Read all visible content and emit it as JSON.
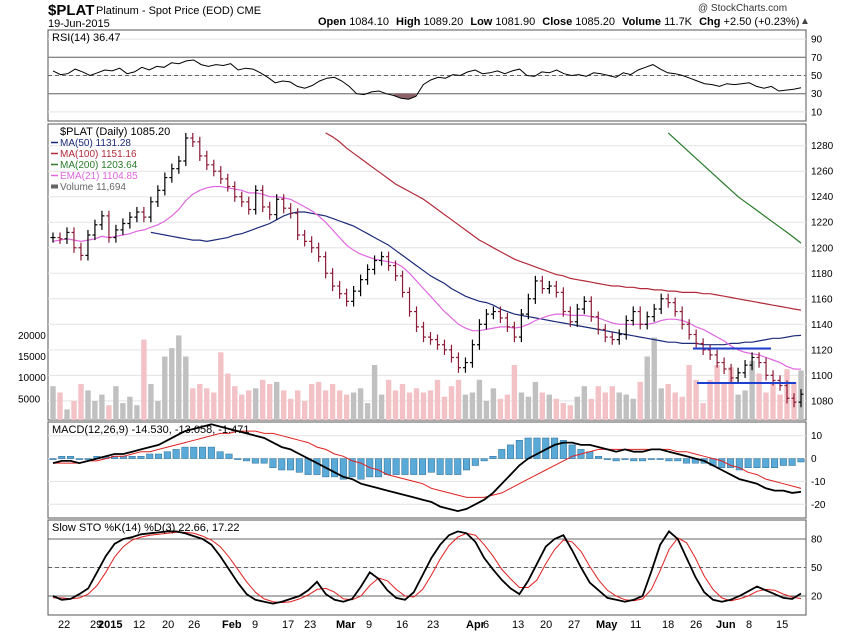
{
  "header": {
    "symbol": "$PLAT",
    "name": "Platinum",
    "subtitle": "- Spot Price (EOD)",
    "exchange": "CME",
    "date": "19-Jun-2015",
    "copyright": "@ StockCharts.com",
    "open_label": "Open",
    "open": "1084.10",
    "high_label": "High",
    "high": "1089.20",
    "low_label": "Low",
    "low": "1081.90",
    "close_label": "Close",
    "close": "1085.20",
    "volume_label": "Volume",
    "volume": "11.7K",
    "chg_label": "Chg",
    "chg": "+2.50 (+0.23%)",
    "arrow": "▲"
  },
  "colors": {
    "up_bar": "#000000",
    "down_bar": "#8b1a35",
    "ma50": "#1c2a7a",
    "ma100": "#b22a3a",
    "ma200": "#2a7a2a",
    "ema21": "#e066e0",
    "vol_up": "#c0c0c0",
    "vol_down": "#f2c2c6",
    "hist": "#5aaad8",
    "support": "#1f3fd0",
    "grid": "#e3e3e3",
    "rsi_fill": "#8a6468"
  },
  "chart_data": [
    {
      "type": "line",
      "title": "RSI(14) 36.47",
      "legend": [
        "RSI(14) 36.47"
      ],
      "ylim": [
        0,
        100
      ],
      "ticks": [
        "90",
        "70",
        "50",
        "30",
        "10"
      ],
      "tick_values": [
        90,
        70,
        50,
        30,
        10
      ],
      "reference_lines": [
        70,
        50,
        30
      ],
      "values": [
        55,
        51,
        52,
        57,
        54,
        50,
        53,
        56,
        55,
        58,
        52,
        54,
        59,
        56,
        60,
        59,
        64,
        63,
        66,
        67,
        62,
        60,
        62,
        61,
        63,
        56,
        58,
        57,
        53,
        48,
        42,
        44,
        43,
        38,
        36,
        39,
        44,
        47,
        48,
        44,
        38,
        30,
        29,
        32,
        33,
        30,
        28,
        25,
        24,
        27,
        40,
        45,
        48,
        47,
        51,
        50,
        54,
        56,
        52,
        53,
        55,
        52,
        55,
        57,
        50,
        49,
        54,
        53,
        56,
        52,
        50,
        51,
        49,
        53,
        52,
        50,
        48,
        53,
        51,
        56,
        59,
        62,
        57,
        53,
        52,
        50,
        47,
        44,
        41,
        40,
        38,
        41,
        40,
        41,
        42,
        38,
        36,
        38,
        33,
        34,
        35,
        36.47
      ]
    },
    {
      "type": "bar",
      "title": "$PLAT (Daily) 1085.20",
      "legend": [
        "$PLAT (Daily) 1085.20",
        "MA(50) 1131.28",
        "MA(100) 1151.16",
        "MA(200) 1203.64",
        "EMA(21) 1104.85",
        "Volume 11,694"
      ],
      "ylim": [
        1065,
        1297
      ],
      "ticks": [
        "1280",
        "1260",
        "1240",
        "1220",
        "1200",
        "1180",
        "1160",
        "1140",
        "1120",
        "1100",
        "1080"
      ],
      "tick_values": [
        1280,
        1260,
        1240,
        1220,
        1200,
        1180,
        1160,
        1140,
        1120,
        1100,
        1080
      ],
      "volume_ticks": [
        "20000",
        "15000",
        "10000",
        "5000"
      ],
      "volume_tick_values": [
        20000,
        15000,
        10000,
        5000
      ],
      "volume_max": 26000,
      "close": [
        1208,
        1207,
        1212,
        1200,
        1194,
        1210,
        1218,
        1225,
        1208,
        1214,
        1219,
        1224,
        1228,
        1224,
        1236,
        1245,
        1255,
        1262,
        1268,
        1286,
        1283,
        1272,
        1265,
        1260,
        1254,
        1248,
        1240,
        1236,
        1230,
        1245,
        1232,
        1226,
        1238,
        1231,
        1227,
        1210,
        1205,
        1200,
        1193,
        1180,
        1170,
        1164,
        1158,
        1166,
        1175,
        1183,
        1190,
        1193,
        1186,
        1178,
        1165,
        1150,
        1138,
        1130,
        1128,
        1124,
        1120,
        1114,
        1106,
        1110,
        1124,
        1140,
        1148,
        1150,
        1145,
        1138,
        1130,
        1148,
        1160,
        1174,
        1168,
        1170,
        1165,
        1150,
        1142,
        1152,
        1158,
        1146,
        1136,
        1130,
        1128,
        1132,
        1143,
        1150,
        1140,
        1146,
        1152,
        1160,
        1157,
        1150,
        1140,
        1132,
        1125,
        1120,
        1116,
        1110,
        1105,
        1098,
        1102,
        1108,
        1114,
        1110,
        1100,
        1096,
        1092,
        1082,
        1079,
        1085.2
      ],
      "ma50": [
        1212,
        1211,
        1210,
        1209,
        1208,
        1207,
        1206,
        1206,
        1205,
        1206,
        1207,
        1208,
        1210,
        1211,
        1213,
        1215,
        1217,
        1219,
        1222,
        1225,
        1227,
        1228,
        1228,
        1227,
        1226,
        1225,
        1223,
        1221,
        1219,
        1217,
        1214,
        1211,
        1208,
        1205,
        1202,
        1198,
        1194,
        1190,
        1186,
        1182,
        1178,
        1175,
        1172,
        1168,
        1165,
        1162,
        1160,
        1158,
        1157,
        1155,
        1152,
        1150,
        1148,
        1147,
        1146,
        1145,
        1144,
        1143,
        1142,
        1141,
        1140,
        1139,
        1138,
        1137,
        1136,
        1135,
        1134,
        1133,
        1132,
        1131,
        1130,
        1129,
        1128,
        1127,
        1126,
        1126,
        1125,
        1125,
        1125,
        1124,
        1124,
        1124,
        1124,
        1125,
        1125,
        1126,
        1126,
        1127,
        1128,
        1129,
        1129,
        1130,
        1131,
        1131.28
      ],
      "ma100": [
        1290,
        1287,
        1283,
        1278,
        1274,
        1270,
        1266,
        1262,
        1258,
        1254,
        1250,
        1247,
        1244,
        1241,
        1238,
        1234,
        1230,
        1226,
        1222,
        1218,
        1214,
        1210,
        1206,
        1203,
        1200,
        1197,
        1194,
        1191,
        1189,
        1187,
        1185,
        1183,
        1181,
        1179,
        1178,
        1176,
        1175,
        1174,
        1173,
        1172,
        1171,
        1170,
        1170,
        1169,
        1169,
        1168,
        1168,
        1167,
        1167,
        1166,
        1166,
        1165,
        1165,
        1165,
        1164,
        1164,
        1163,
        1162,
        1161,
        1160,
        1159,
        1158,
        1157,
        1156,
        1155,
        1154,
        1153,
        1152,
        1151.16
      ],
      "ma200": [
        1290,
        1285,
        1280,
        1275,
        1270,
        1265,
        1260,
        1255,
        1250,
        1245,
        1240,
        1236,
        1232,
        1228,
        1224,
        1220,
        1216,
        1212,
        1208,
        1203.64
      ],
      "ema21": [
        1205,
        1206,
        1207,
        1206,
        1205,
        1206,
        1207,
        1209,
        1208,
        1209,
        1210,
        1211,
        1213,
        1214,
        1216,
        1218,
        1221,
        1225,
        1230,
        1237,
        1242,
        1245,
        1247,
        1248,
        1248,
        1247,
        1246,
        1245,
        1243,
        1243,
        1242,
        1240,
        1240,
        1239,
        1238,
        1235,
        1232,
        1229,
        1225,
        1220,
        1214,
        1208,
        1202,
        1198,
        1195,
        1193,
        1191,
        1190,
        1189,
        1188,
        1185,
        1180,
        1174,
        1168,
        1162,
        1156,
        1150,
        1145,
        1140,
        1137,
        1135,
        1135,
        1136,
        1137,
        1138,
        1138,
        1137,
        1138,
        1140,
        1143,
        1145,
        1147,
        1148,
        1148,
        1147,
        1147,
        1147,
        1146,
        1145,
        1143,
        1141,
        1140,
        1140,
        1140,
        1140,
        1140,
        1141,
        1143,
        1144,
        1144,
        1143,
        1141,
        1138,
        1136,
        1133,
        1130,
        1127,
        1123,
        1120,
        1118,
        1117,
        1116,
        1114,
        1112,
        1110,
        1107,
        1105,
        1104.85
      ],
      "volume": [
        8000,
        6500,
        2500,
        4500,
        8500,
        7000,
        4500,
        6000,
        3500,
        8000,
        4000,
        5500,
        3500,
        19000,
        8500,
        4500,
        15000,
        17000,
        20000,
        15000,
        7500,
        8500,
        7500,
        6500,
        16000,
        11000,
        8000,
        6000,
        7000,
        7500,
        9500,
        8500,
        9000,
        7000,
        5000,
        7000,
        4500,
        8500,
        9000,
        7000,
        8500,
        7000,
        6000,
        6500,
        7500,
        4000,
        13000,
        6000,
        9500,
        7000,
        8500,
        6500,
        7500,
        6500,
        7000,
        9500,
        5500,
        8000,
        9500,
        6000,
        6500,
        9500,
        4500,
        7500,
        5000,
        6000,
        13000,
        6500,
        5500,
        9000,
        6500,
        6000,
        5000,
        4000,
        3500,
        5500,
        8000,
        5000,
        8000,
        6500,
        8000,
        6500,
        6000,
        5000,
        9000,
        15000,
        19500,
        7500,
        8500,
        6500,
        5500,
        13000,
        9500,
        4000,
        9500,
        13000,
        9000,
        12500,
        6000,
        7000,
        14000,
        11000,
        6500,
        8500,
        6000,
        12000,
        9000,
        11694
      ]
    },
    {
      "type": "line",
      "title": "MACD(12,26,9) -14.530, -13.058, -1.471",
      "legend": [
        "MACD(12,26,9) -14.530",
        "-13.058",
        "-1.471"
      ],
      "ylim": [
        -26,
        16
      ],
      "ticks": [
        "10",
        "0",
        "-10",
        "-20"
      ],
      "tick_values": [
        10,
        0,
        -10,
        -20
      ],
      "macd": [
        -2,
        -1,
        -1,
        -2,
        -1,
        0,
        1,
        2,
        2,
        3,
        4,
        5,
        6,
        8,
        10,
        12,
        13,
        14,
        15,
        14,
        13,
        12,
        11,
        10,
        9,
        7,
        5,
        4,
        2,
        0,
        -2,
        -4,
        -6,
        -8,
        -9,
        -11,
        -12,
        -13,
        -14,
        -15,
        -16,
        -17,
        -18,
        -19,
        -21,
        -22,
        -23,
        -22,
        -20,
        -18,
        -15,
        -11,
        -7,
        -3,
        0,
        2,
        4,
        6,
        7,
        7,
        6,
        6,
        5,
        4,
        3,
        4,
        3,
        3,
        4,
        4,
        3,
        2,
        1,
        0,
        -1,
        -3,
        -5,
        -7,
        -9,
        -10,
        -11,
        -13,
        -14,
        -14,
        -15,
        -14.53
      ],
      "signal": [
        -2,
        -2,
        -2,
        -2,
        -1,
        -1,
        0,
        1,
        1,
        2,
        3,
        3,
        4,
        5,
        6,
        7,
        8,
        9,
        10,
        11,
        11,
        12,
        12,
        12,
        11,
        11,
        10,
        9,
        8,
        7,
        5,
        4,
        2,
        1,
        -1,
        -2,
        -4,
        -5,
        -7,
        -8,
        -9,
        -10,
        -11,
        -13,
        -14,
        -15,
        -16,
        -17,
        -17,
        -17,
        -16,
        -15,
        -13,
        -11,
        -9,
        -7,
        -5,
        -3,
        -1,
        1,
        2,
        3,
        4,
        4,
        4,
        4,
        4,
        4,
        4,
        4,
        4,
        3,
        3,
        2,
        1,
        0,
        -1,
        -3,
        -4,
        -6,
        -7,
        -9,
        -10,
        -11,
        -12,
        -13.058
      ],
      "hist_max": 8
    },
    {
      "type": "line",
      "title": "Slow STO %K(14) %D(3) 22.66, 17.22",
      "legend": [
        "Slow STO %K(14) %D(3) 22.66",
        "17.22"
      ],
      "ylim": [
        0,
        100
      ],
      "ticks": [
        "80",
        "50",
        "20"
      ],
      "tick_values": [
        80,
        50,
        20
      ],
      "k": [
        20,
        16,
        17,
        22,
        28,
        45,
        62,
        75,
        80,
        82,
        85,
        86,
        87,
        88,
        88,
        86,
        83,
        80,
        74,
        62,
        48,
        34,
        22,
        16,
        14,
        12,
        14,
        17,
        20,
        26,
        35,
        22,
        16,
        14,
        17,
        30,
        45,
        38,
        26,
        18,
        16,
        24,
        42,
        60,
        74,
        84,
        88,
        86,
        77,
        60,
        48,
        37,
        28,
        22,
        36,
        54,
        72,
        80,
        84,
        68,
        50,
        34,
        26,
        18,
        16,
        14,
        16,
        20,
        46,
        74,
        88,
        80,
        60,
        40,
        24,
        16,
        14,
        16,
        20,
        25,
        30,
        26,
        22,
        18,
        17,
        22.66
      ],
      "d": [
        18,
        18,
        17,
        18,
        22,
        31,
        45,
        61,
        72,
        79,
        82,
        84,
        85,
        86,
        87,
        87,
        86,
        83,
        79,
        72,
        61,
        48,
        35,
        24,
        17,
        14,
        13,
        14,
        17,
        21,
        27,
        28,
        24,
        17,
        16,
        20,
        31,
        39,
        36,
        27,
        20,
        19,
        27,
        42,
        59,
        73,
        82,
        86,
        84,
        74,
        62,
        48,
        38,
        29,
        29,
        37,
        54,
        69,
        79,
        77,
        67,
        51,
        37,
        26,
        20,
        16,
        15,
        17,
        27,
        47,
        69,
        81,
        76,
        60,
        41,
        27,
        18,
        15,
        17,
        20,
        25,
        27,
        26,
        22,
        19,
        17.22
      ]
    }
  ],
  "axis": {
    "upper_labels": [
      "22",
      "29",
      "2015",
      "12",
      "20",
      "26",
      "Feb",
      "9",
      "17",
      "23",
      "Mar",
      "9",
      "16",
      "23",
      "Apr",
      "6",
      "13",
      "20",
      "27",
      "May",
      "11",
      "18",
      "26",
      "Jun",
      "8",
      "15"
    ],
    "lower_labels": [
      "22",
      "29",
      "2015",
      "12",
      "20",
      "26",
      "Feb",
      "9",
      "17",
      "23",
      "Mar",
      "9",
      "16",
      "23",
      "Apr",
      "6",
      "13",
      "20",
      "27",
      "May",
      "11",
      "18",
      "26",
      "Jun",
      "8",
      "15"
    ]
  }
}
